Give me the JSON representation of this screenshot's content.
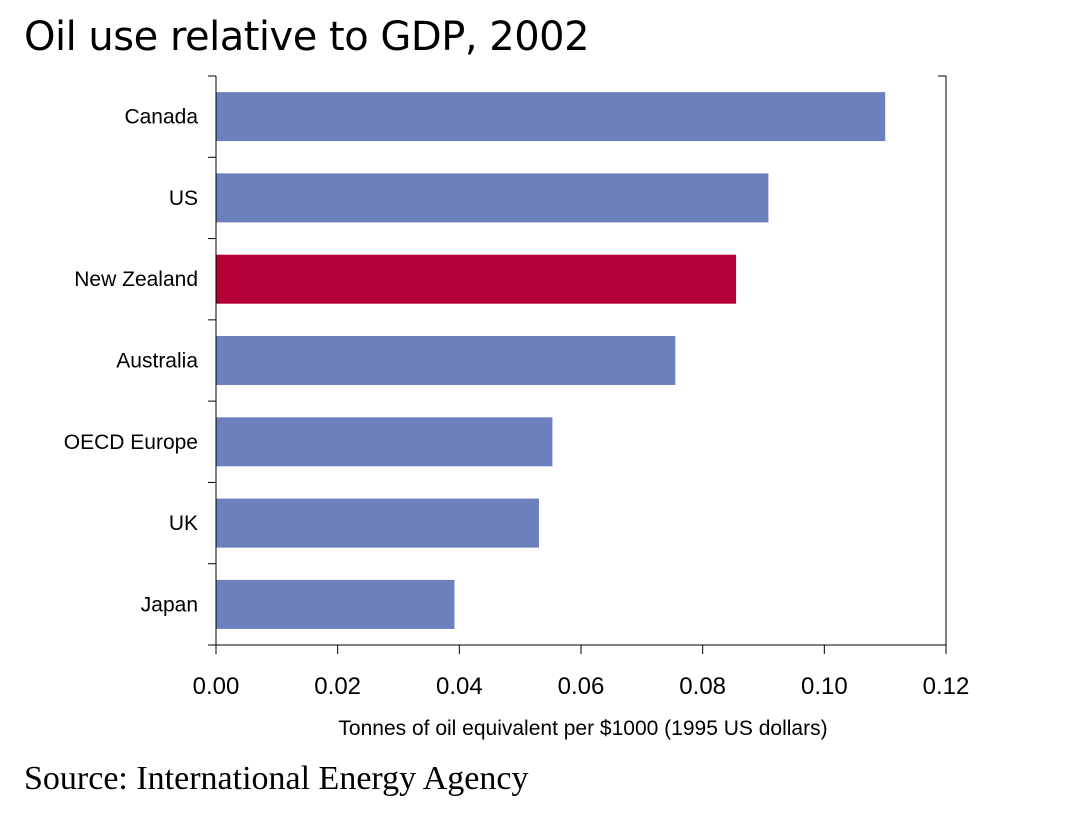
{
  "title": "Oil use relative to GDP, 2002",
  "source": "Source: International Energy Agency",
  "colors": {
    "bar": "#6b80bd",
    "highlight": "#b40037",
    "axis": "#000000"
  },
  "chart_data": {
    "type": "bar",
    "orientation": "horizontal",
    "title": "Oil use relative to GDP, 2002",
    "categories": [
      "Canada",
      "US",
      "New Zealand",
      "Australia",
      "OECD Europe",
      "UK",
      "Japan"
    ],
    "values": [
      0.11,
      0.0908,
      0.0855,
      0.0755,
      0.0553,
      0.0531,
      0.0392
    ],
    "highlight": "New Zealand",
    "xlabel": "Tonnes of oil equivalent per $1000 (1995 US dollars)",
    "ylabel": "",
    "xlim": [
      0,
      0.12
    ],
    "xticks": [
      "0.00",
      "0.02",
      "0.04",
      "0.06",
      "0.08",
      "0.10",
      "0.12"
    ],
    "grid": false,
    "legend": "none"
  }
}
